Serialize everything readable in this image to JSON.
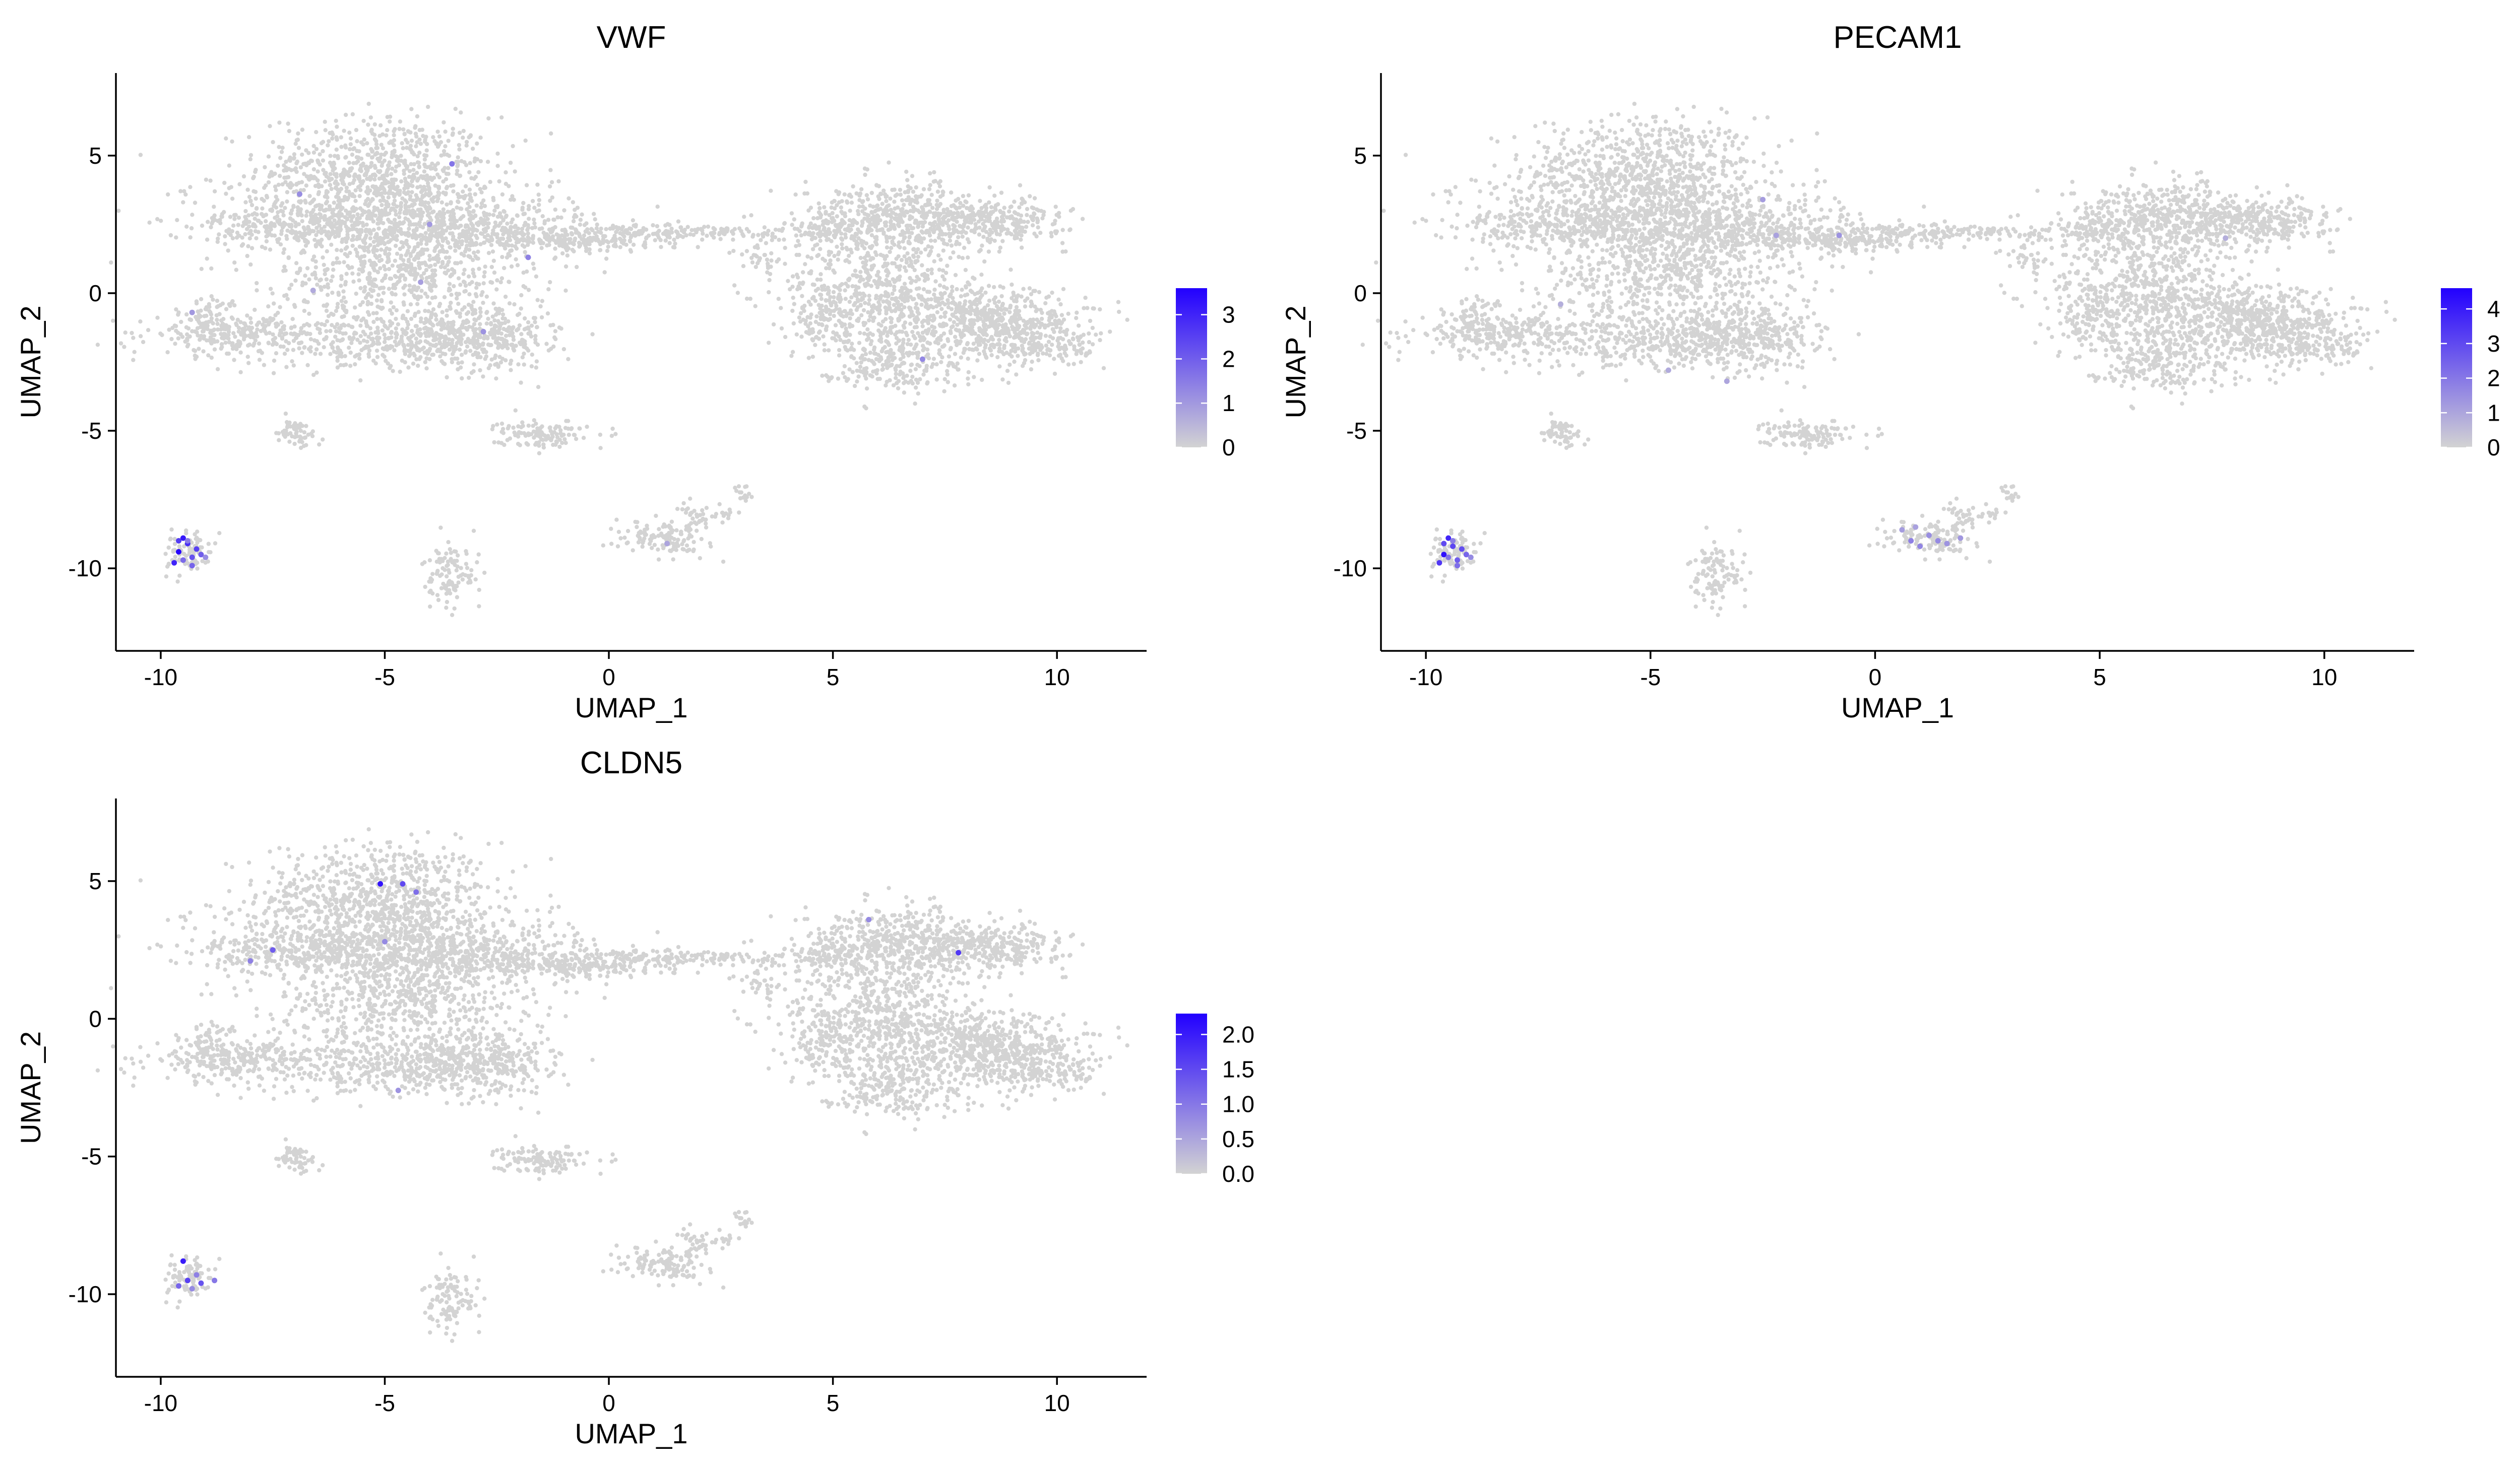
{
  "chart_data": [
    {
      "type": "scatter",
      "title": "VWF",
      "xlabel": "UMAP_1",
      "ylabel": "UMAP_2",
      "xlim": [
        -11,
        12
      ],
      "ylim": [
        -13,
        8
      ],
      "xticks": [
        -10,
        -5,
        0,
        5,
        10
      ],
      "yticks": [
        5,
        0,
        -5,
        -10
      ],
      "grid": false,
      "legend": "right",
      "colorbar": {
        "min": 0,
        "max": 3.6,
        "ticks": [
          0,
          1,
          2,
          3
        ],
        "low_color": "#d3d3d3",
        "high_color": "#2200ff"
      },
      "highlight_points": [
        [
          -9.5,
          -8.9,
          3.2
        ],
        [
          -9.4,
          -9.1,
          2.8
        ],
        [
          -9.6,
          -9.4,
          3.5
        ],
        [
          -9.3,
          -9.6,
          2.2
        ],
        [
          -9.7,
          -9.8,
          3.0
        ],
        [
          -9.2,
          -9.3,
          2.5
        ],
        [
          -9.5,
          -9.7,
          1.8
        ],
        [
          -9.1,
          -9.5,
          2.0
        ],
        [
          -9.4,
          -9.0,
          1.5
        ],
        [
          -9.0,
          -9.6,
          1.2
        ],
        [
          -9.6,
          -9.0,
          2.6
        ],
        [
          -9.3,
          -9.9,
          1.9
        ],
        [
          -3.5,
          4.7,
          1.6
        ],
        [
          -6.9,
          3.6,
          1.2
        ],
        [
          -4.0,
          2.5,
          1.0
        ],
        [
          -1.8,
          1.3,
          1.4
        ],
        [
          -4.2,
          0.4,
          0.9
        ],
        [
          -2.8,
          -1.4,
          1.1
        ],
        [
          7.0,
          -2.4,
          1.3
        ],
        [
          -9.3,
          -0.7,
          1.0
        ],
        [
          1.3,
          -9.1,
          0.8
        ],
        [
          -6.6,
          0.1,
          0.7
        ]
      ]
    },
    {
      "type": "scatter",
      "title": "PECAM1",
      "xlabel": "UMAP_1",
      "ylabel": "UMAP_2",
      "xlim": [
        -11,
        12
      ],
      "ylim": [
        -13,
        8
      ],
      "xticks": [
        -10,
        -5,
        0,
        5,
        10
      ],
      "yticks": [
        5,
        0,
        -5,
        -10
      ],
      "grid": false,
      "legend": "right",
      "colorbar": {
        "min": 0,
        "max": 4.6,
        "ticks": [
          0,
          1,
          2,
          3,
          4
        ],
        "low_color": "#d3d3d3",
        "high_color": "#2200ff"
      },
      "highlight_points": [
        [
          -9.5,
          -8.9,
          3.8
        ],
        [
          -9.4,
          -9.2,
          3.1
        ],
        [
          -9.6,
          -9.5,
          4.2
        ],
        [
          -9.3,
          -9.7,
          2.6
        ],
        [
          -9.7,
          -9.8,
          3.4
        ],
        [
          -9.2,
          -9.3,
          2.9
        ],
        [
          -9.5,
          -9.6,
          2.1
        ],
        [
          -9.1,
          -9.5,
          2.4
        ],
        [
          -9.4,
          -9.0,
          1.9
        ],
        [
          -9.0,
          -9.6,
          1.6
        ],
        [
          -9.6,
          -9.1,
          3.0
        ],
        [
          -9.3,
          -9.9,
          2.2
        ],
        [
          0.8,
          -9.0,
          1.8
        ],
        [
          1.2,
          -8.8,
          1.5
        ],
        [
          1.6,
          -9.1,
          1.4
        ],
        [
          0.6,
          -8.6,
          1.2
        ],
        [
          1.0,
          -9.2,
          1.7
        ],
        [
          1.9,
          -8.9,
          1.3
        ],
        [
          0.9,
          -8.5,
          1.1
        ],
        [
          1.4,
          -9.0,
          1.6
        ],
        [
          -0.8,
          2.1,
          1.4
        ],
        [
          -2.5,
          3.4,
          1.2
        ],
        [
          -3.3,
          -3.2,
          1.0
        ],
        [
          -4.6,
          -2.8,
          0.9
        ],
        [
          -7.0,
          -0.4,
          0.8
        ],
        [
          -2.2,
          2.1,
          1.1
        ],
        [
          7.8,
          2.0,
          0.8
        ]
      ]
    },
    {
      "type": "scatter",
      "title": "CLDN5",
      "xlabel": "UMAP_1",
      "ylabel": "UMAP_2",
      "xlim": [
        -11,
        12
      ],
      "ylim": [
        -13,
        8
      ],
      "xticks": [
        -10,
        -5,
        0,
        5,
        10
      ],
      "yticks": [
        5,
        0,
        -5,
        -10
      ],
      "grid": false,
      "legend": "right",
      "colorbar": {
        "min": 0,
        "max": 2.3,
        "ticks": [
          0.0,
          0.5,
          1.0,
          1.5,
          2.0
        ],
        "low_color": "#d3d3d3",
        "high_color": "#2200ff"
      },
      "highlight_points": [
        [
          -9.5,
          -8.8,
          2.0
        ],
        [
          -9.4,
          -9.5,
          1.6
        ],
        [
          -9.6,
          -9.7,
          1.2
        ],
        [
          -9.2,
          -9.3,
          0.9
        ],
        [
          -9.1,
          -9.6,
          1.4
        ],
        [
          -9.3,
          -9.8,
          0.8
        ],
        [
          -8.8,
          -9.5,
          1.0
        ],
        [
          -5.1,
          4.9,
          2.1
        ],
        [
          -4.6,
          4.9,
          1.5
        ],
        [
          -4.3,
          4.6,
          1.1
        ],
        [
          -7.5,
          2.5,
          1.3
        ],
        [
          -8.0,
          2.1,
          0.9
        ],
        [
          -5.0,
          2.8,
          0.8
        ],
        [
          7.8,
          2.4,
          1.7
        ],
        [
          5.8,
          3.6,
          0.8
        ],
        [
          -4.7,
          -2.6,
          0.7
        ]
      ]
    }
  ]
}
